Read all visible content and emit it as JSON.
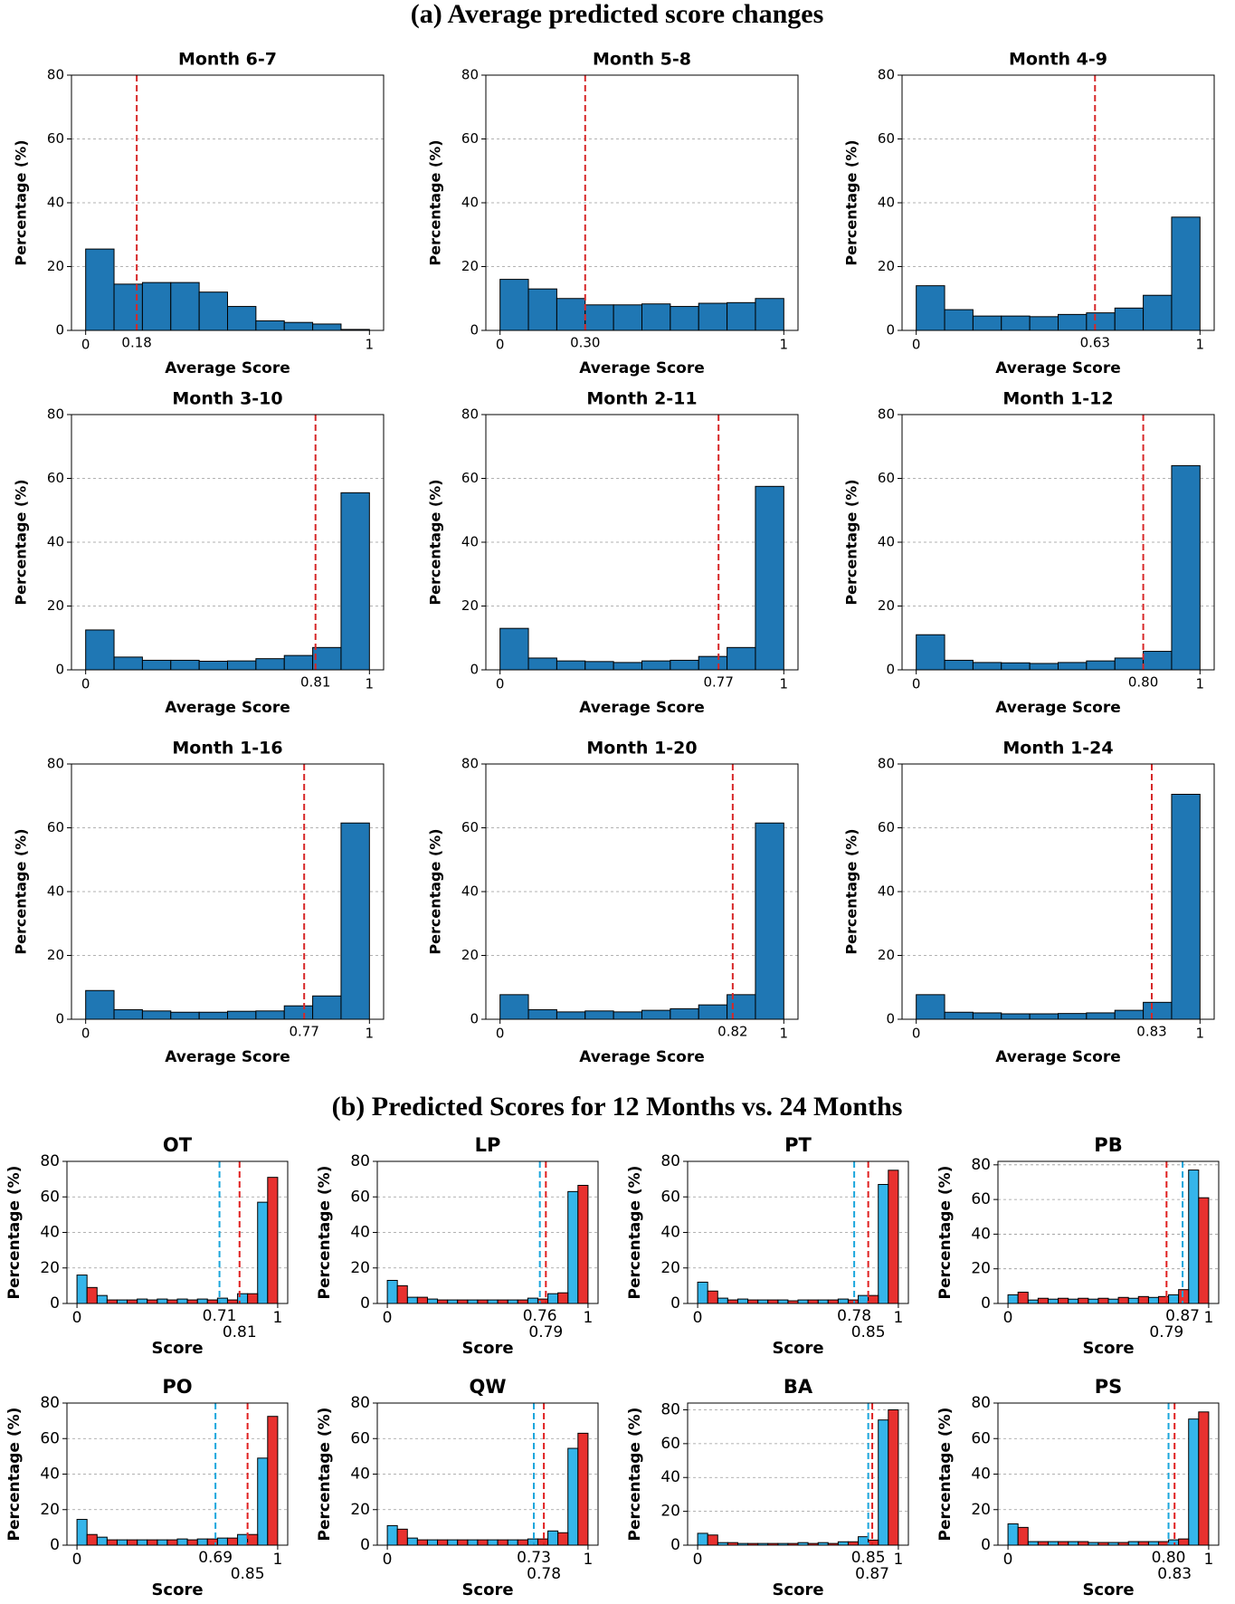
{
  "headings": [
    "(a) Average predicted score changes",
    "(b) Predicted Scores for 12 Months vs. 24 Months"
  ],
  "chart_data": [
    {
      "type": "histogram",
      "title": "Month 6-7",
      "xlabel": "Average Score",
      "ylabel": "Percentage (%)",
      "bins": [
        0,
        0.1,
        0.2,
        0.3,
        0.4,
        0.5,
        0.6,
        0.7,
        0.8,
        0.9,
        1
      ],
      "values": [
        25.5,
        14.5,
        15,
        15,
        12,
        7.5,
        3,
        2.5,
        2,
        0.3
      ],
      "color": "#1f77b4",
      "xlim": [
        -0.05,
        1.05
      ],
      "ylim": [
        0,
        80
      ],
      "xticks": [
        0,
        1
      ],
      "yticks": [
        0,
        20,
        40,
        60,
        80
      ],
      "grid": true,
      "vlines": [
        {
          "value": 0.18,
          "label": "0.18",
          "color": "#d62728"
        }
      ]
    },
    {
      "type": "histogram",
      "title": "Month 5-8",
      "xlabel": "Average Score",
      "ylabel": "Percentage (%)",
      "bins": [
        0,
        0.1,
        0.2,
        0.3,
        0.4,
        0.5,
        0.6,
        0.7,
        0.8,
        0.9,
        1
      ],
      "values": [
        16,
        13,
        10,
        8,
        8,
        8.3,
        7.5,
        8.5,
        8.7,
        10
      ],
      "color": "#1f77b4",
      "xlim": [
        -0.05,
        1.05
      ],
      "ylim": [
        0,
        80
      ],
      "xticks": [
        0,
        1
      ],
      "yticks": [
        0,
        20,
        40,
        60,
        80
      ],
      "grid": true,
      "vlines": [
        {
          "value": 0.3,
          "label": "0.30",
          "color": "#d62728"
        }
      ]
    },
    {
      "type": "histogram",
      "title": "Month 4-9",
      "xlabel": "Average Score",
      "ylabel": "Percentage (%)",
      "bins": [
        0,
        0.1,
        0.2,
        0.3,
        0.4,
        0.5,
        0.6,
        0.7,
        0.8,
        0.9,
        1
      ],
      "values": [
        14,
        6.5,
        4.5,
        4.5,
        4.3,
        5,
        5.5,
        7,
        11,
        35.5
      ],
      "color": "#1f77b4",
      "xlim": [
        -0.05,
        1.05
      ],
      "ylim": [
        0,
        80
      ],
      "xticks": [
        0,
        1
      ],
      "yticks": [
        0,
        20,
        40,
        60,
        80
      ],
      "grid": true,
      "vlines": [
        {
          "value": 0.63,
          "label": "0.63",
          "color": "#d62728"
        }
      ]
    },
    {
      "type": "histogram",
      "title": "Month 3-10",
      "xlabel": "Average Score",
      "ylabel": "Percentage (%)",
      "bins": [
        0,
        0.1,
        0.2,
        0.3,
        0.4,
        0.5,
        0.6,
        0.7,
        0.8,
        0.9,
        1
      ],
      "values": [
        12.5,
        4,
        3,
        3,
        2.7,
        2.8,
        3.5,
        4.5,
        7,
        55.5
      ],
      "color": "#1f77b4",
      "xlim": [
        -0.05,
        1.05
      ],
      "ylim": [
        0,
        80
      ],
      "xticks": [
        0,
        1
      ],
      "yticks": [
        0,
        20,
        40,
        60,
        80
      ],
      "grid": true,
      "vlines": [
        {
          "value": 0.81,
          "label": "0.81",
          "color": "#d62728"
        }
      ]
    },
    {
      "type": "histogram",
      "title": "Month 2-11",
      "xlabel": "Average Score",
      "ylabel": "Percentage (%)",
      "bins": [
        0,
        0.1,
        0.2,
        0.3,
        0.4,
        0.5,
        0.6,
        0.7,
        0.8,
        0.9,
        1
      ],
      "values": [
        13,
        3.7,
        2.8,
        2.6,
        2.3,
        2.8,
        3,
        4.2,
        7,
        57.5
      ],
      "color": "#1f77b4",
      "xlim": [
        -0.05,
        1.05
      ],
      "ylim": [
        0,
        80
      ],
      "xticks": [
        0,
        1
      ],
      "yticks": [
        0,
        20,
        40,
        60,
        80
      ],
      "grid": true,
      "vlines": [
        {
          "value": 0.77,
          "label": "0.77",
          "color": "#d62728"
        }
      ]
    },
    {
      "type": "histogram",
      "title": "Month 1-12",
      "xlabel": "Average Score",
      "ylabel": "Percentage (%)",
      "bins": [
        0,
        0.1,
        0.2,
        0.3,
        0.4,
        0.5,
        0.6,
        0.7,
        0.8,
        0.9,
        1
      ],
      "values": [
        11,
        3,
        2.3,
        2.2,
        2,
        2.3,
        2.8,
        3.7,
        5.8,
        64
      ],
      "color": "#1f77b4",
      "xlim": [
        -0.05,
        1.05
      ],
      "ylim": [
        0,
        80
      ],
      "xticks": [
        0,
        1
      ],
      "yticks": [
        0,
        20,
        40,
        60,
        80
      ],
      "grid": true,
      "vlines": [
        {
          "value": 0.8,
          "label": "0.80",
          "color": "#d62728"
        }
      ]
    },
    {
      "type": "histogram",
      "title": "Month 1-16",
      "xlabel": "Average Score",
      "ylabel": "Percentage (%)",
      "bins": [
        0,
        0.1,
        0.2,
        0.3,
        0.4,
        0.5,
        0.6,
        0.7,
        0.8,
        0.9,
        1
      ],
      "values": [
        9,
        3,
        2.6,
        2.2,
        2.2,
        2.5,
        2.6,
        4.2,
        7.3,
        61.5
      ],
      "color": "#1f77b4",
      "xlim": [
        -0.05,
        1.05
      ],
      "ylim": [
        0,
        80
      ],
      "xticks": [
        0,
        1
      ],
      "yticks": [
        0,
        20,
        40,
        60,
        80
      ],
      "grid": true,
      "vlines": [
        {
          "value": 0.77,
          "label": "0.77",
          "color": "#d62728"
        }
      ]
    },
    {
      "type": "histogram",
      "title": "Month 1-20",
      "xlabel": "Average Score",
      "ylabel": "Percentage (%)",
      "bins": [
        0,
        0.1,
        0.2,
        0.3,
        0.4,
        0.5,
        0.6,
        0.7,
        0.8,
        0.9,
        1
      ],
      "values": [
        7.7,
        3,
        2.3,
        2.6,
        2.3,
        2.8,
        3.3,
        4.5,
        7.7,
        61.5
      ],
      "color": "#1f77b4",
      "xlim": [
        -0.05,
        1.05
      ],
      "ylim": [
        0,
        80
      ],
      "xticks": [
        0,
        1
      ],
      "yticks": [
        0,
        20,
        40,
        60,
        80
      ],
      "grid": true,
      "vlines": [
        {
          "value": 0.82,
          "label": "0.82",
          "color": "#d62728"
        }
      ]
    },
    {
      "type": "histogram",
      "title": "Month 1-24",
      "xlabel": "Average Score",
      "ylabel": "Percentage (%)",
      "bins": [
        0,
        0.1,
        0.2,
        0.3,
        0.4,
        0.5,
        0.6,
        0.7,
        0.8,
        0.9,
        1
      ],
      "values": [
        7.7,
        2.2,
        2,
        1.7,
        1.7,
        1.8,
        2,
        2.8,
        5.3,
        70.5
      ],
      "color": "#1f77b4",
      "xlim": [
        -0.05,
        1.05
      ],
      "ylim": [
        0,
        80
      ],
      "xticks": [
        0,
        1
      ],
      "yticks": [
        0,
        20,
        40,
        60,
        80
      ],
      "grid": true,
      "vlines": [
        {
          "value": 0.83,
          "label": "0.83",
          "color": "#d62728"
        }
      ]
    },
    {
      "type": "histogram",
      "title": "OT",
      "xlabel": "Score",
      "ylabel": "Percentage (%)",
      "bins": [
        0,
        0.1,
        0.2,
        0.3,
        0.4,
        0.5,
        0.6,
        0.7,
        0.8,
        0.9,
        1
      ],
      "series": [
        {
          "color": "#35b5ea",
          "values": [
            16,
            4.5,
            2,
            2.5,
            2.5,
            2.5,
            2.5,
            3,
            5.5,
            57
          ]
        },
        {
          "color": "#e8312f",
          "values": [
            9,
            2,
            2,
            2,
            2,
            2,
            2,
            2,
            5.5,
            71
          ]
        }
      ],
      "xlim": [
        -0.05,
        1.05
      ],
      "ylim": [
        0,
        80
      ],
      "xticks": [
        0,
        1
      ],
      "yticks": [
        0,
        20,
        40,
        60,
        80
      ],
      "grid": true,
      "vlines": [
        {
          "value": 0.71,
          "label": "0.71",
          "color": "#1ba6dc"
        },
        {
          "value": 0.81,
          "label": "0.81",
          "color": "#e02020"
        }
      ]
    },
    {
      "type": "histogram",
      "title": "LP",
      "xlabel": "Score",
      "ylabel": "Percentage (%)",
      "bins": [
        0,
        0.1,
        0.2,
        0.3,
        0.4,
        0.5,
        0.6,
        0.7,
        0.8,
        0.9,
        1
      ],
      "series": [
        {
          "color": "#35b5ea",
          "values": [
            13,
            3.5,
            2.5,
            2,
            2,
            2,
            2,
            3,
            5.5,
            63
          ]
        },
        {
          "color": "#e8312f",
          "values": [
            10,
            3.5,
            2,
            2,
            2,
            2,
            2,
            2.5,
            6,
            66.5
          ]
        }
      ],
      "xlim": [
        -0.05,
        1.05
      ],
      "ylim": [
        0,
        80
      ],
      "xticks": [
        0,
        1
      ],
      "yticks": [
        0,
        20,
        40,
        60,
        80
      ],
      "grid": true,
      "vlines": [
        {
          "value": 0.76,
          "label": "0.76",
          "color": "#1ba6dc"
        },
        {
          "value": 0.79,
          "label": "0.79",
          "color": "#e02020"
        }
      ]
    },
    {
      "type": "histogram",
      "title": "PT",
      "xlabel": "Score",
      "ylabel": "Percentage (%)",
      "bins": [
        0,
        0.1,
        0.2,
        0.3,
        0.4,
        0.5,
        0.6,
        0.7,
        0.8,
        0.9,
        1
      ],
      "series": [
        {
          "color": "#35b5ea",
          "values": [
            12,
            3,
            2.5,
            2,
            2,
            2,
            2,
            2.5,
            4.5,
            67
          ]
        },
        {
          "color": "#e8312f",
          "values": [
            7,
            2,
            2,
            2,
            1.5,
            2,
            2,
            2,
            4.5,
            75
          ]
        }
      ],
      "xlim": [
        -0.05,
        1.05
      ],
      "ylim": [
        0,
        80
      ],
      "xticks": [
        0,
        1
      ],
      "yticks": [
        0,
        20,
        40,
        60,
        80
      ],
      "grid": true,
      "vlines": [
        {
          "value": 0.78,
          "label": "0.78",
          "color": "#1ba6dc"
        },
        {
          "value": 0.85,
          "label": "0.85",
          "color": "#e02020"
        }
      ]
    },
    {
      "type": "histogram",
      "title": "PB",
      "xlabel": "Score",
      "ylabel": "Percentage (%)",
      "bins": [
        0,
        0.1,
        0.2,
        0.3,
        0.4,
        0.5,
        0.6,
        0.7,
        0.8,
        0.9,
        1
      ],
      "series": [
        {
          "color": "#35b5ea",
          "values": [
            5,
            2,
            2.5,
            2.5,
            2.5,
            2.5,
            3,
            3.5,
            5,
            77
          ]
        },
        {
          "color": "#e8312f",
          "values": [
            6.5,
            3,
            3,
            3,
            3,
            3.5,
            4,
            4,
            8,
            61
          ]
        }
      ],
      "xlim": [
        -0.05,
        1.05
      ],
      "ylim": [
        0,
        82
      ],
      "xticks": [
        0,
        1
      ],
      "yticks": [
        0,
        20,
        40,
        60,
        80
      ],
      "grid": true,
      "vlines": [
        {
          "value": 0.87,
          "label": "0.87",
          "color": "#1ba6dc"
        },
        {
          "value": 0.79,
          "label": "0.79",
          "color": "#e02020"
        }
      ]
    },
    {
      "type": "histogram",
      "title": "PO",
      "xlabel": "Score",
      "ylabel": "Percentage (%)",
      "bins": [
        0,
        0.1,
        0.2,
        0.3,
        0.4,
        0.5,
        0.6,
        0.7,
        0.8,
        0.9,
        1
      ],
      "series": [
        {
          "color": "#35b5ea",
          "values": [
            14.5,
            4.5,
            3,
            3,
            3,
            3.5,
            3.5,
            4,
            6,
            49
          ]
        },
        {
          "color": "#e8312f",
          "values": [
            6,
            3,
            3,
            3,
            3,
            3,
            3.5,
            4,
            6,
            72.5
          ]
        }
      ],
      "xlim": [
        -0.05,
        1.05
      ],
      "ylim": [
        0,
        80
      ],
      "xticks": [
        0,
        1
      ],
      "yticks": [
        0,
        20,
        40,
        60,
        80
      ],
      "grid": true,
      "vlines": [
        {
          "value": 0.69,
          "label": "0.69",
          "color": "#1ba6dc"
        },
        {
          "value": 0.85,
          "label": "0.85",
          "color": "#e02020"
        }
      ]
    },
    {
      "type": "histogram",
      "title": "QW",
      "xlabel": "Score",
      "ylabel": "Percentage (%)",
      "bins": [
        0,
        0.1,
        0.2,
        0.3,
        0.4,
        0.5,
        0.6,
        0.7,
        0.8,
        0.9,
        1
      ],
      "series": [
        {
          "color": "#35b5ea",
          "values": [
            11,
            4,
            3,
            3,
            3,
            3,
            3,
            3.5,
            8,
            54.5
          ]
        },
        {
          "color": "#e8312f",
          "values": [
            9,
            3,
            3,
            3,
            3,
            3,
            3,
            3.5,
            7,
            63
          ]
        }
      ],
      "xlim": [
        -0.05,
        1.05
      ],
      "ylim": [
        0,
        80
      ],
      "xticks": [
        0,
        1
      ],
      "yticks": [
        0,
        20,
        40,
        60,
        80
      ],
      "grid": true,
      "vlines": [
        {
          "value": 0.73,
          "label": "0.73",
          "color": "#1ba6dc"
        },
        {
          "value": 0.78,
          "label": "0.78",
          "color": "#e02020"
        }
      ]
    },
    {
      "type": "histogram",
      "title": "BA",
      "xlabel": "Score",
      "ylabel": "Percentage (%)",
      "bins": [
        0,
        0.1,
        0.2,
        0.3,
        0.4,
        0.5,
        0.6,
        0.7,
        0.8,
        0.9,
        1
      ],
      "series": [
        {
          "color": "#35b5ea",
          "values": [
            7,
            1.5,
            1,
            1,
            1,
            1.5,
            1.5,
            2,
            5,
            74
          ]
        },
        {
          "color": "#e8312f",
          "values": [
            6,
            1.5,
            1,
            1,
            1,
            1,
            1,
            2,
            3,
            80
          ]
        }
      ],
      "xlim": [
        -0.05,
        1.05
      ],
      "ylim": [
        0,
        84
      ],
      "xticks": [
        0,
        1
      ],
      "yticks": [
        0,
        20,
        40,
        60,
        80
      ],
      "grid": true,
      "vlines": [
        {
          "value": 0.85,
          "label": "0.85",
          "color": "#1ba6dc"
        },
        {
          "value": 0.87,
          "label": "0.87",
          "color": "#e02020"
        }
      ]
    },
    {
      "type": "histogram",
      "title": "PS",
      "xlabel": "Score",
      "ylabel": "Percentage (%)",
      "bins": [
        0,
        0.1,
        0.2,
        0.3,
        0.4,
        0.5,
        0.6,
        0.7,
        0.8,
        0.9,
        1
      ],
      "series": [
        {
          "color": "#35b5ea",
          "values": [
            12,
            2,
            2,
            2,
            1.5,
            1.5,
            2,
            2,
            3,
            71
          ]
        },
        {
          "color": "#e8312f",
          "values": [
            10,
            2,
            2,
            2,
            1.5,
            1.5,
            2,
            2,
            3.5,
            75
          ]
        }
      ],
      "xlim": [
        -0.05,
        1.05
      ],
      "ylim": [
        0,
        80
      ],
      "xticks": [
        0,
        1
      ],
      "yticks": [
        0,
        20,
        40,
        60,
        80
      ],
      "grid": true,
      "vlines": [
        {
          "value": 0.8,
          "label": "0.80",
          "color": "#1ba6dc"
        },
        {
          "value": 0.83,
          "label": "0.83",
          "color": "#e02020"
        }
      ]
    }
  ]
}
